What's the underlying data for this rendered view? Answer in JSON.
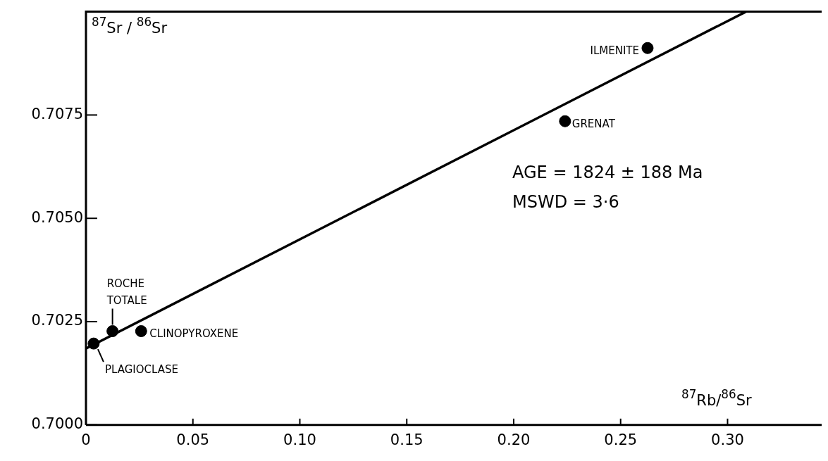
{
  "chart_data": {
    "type": "scatter",
    "xlabel": "$^{87}$Rb/$^{86}$Sr",
    "ylabel": "$^{87}$Sr / $^{86}$Sr",
    "xlim": [
      0,
      0.344
    ],
    "ylim": [
      0.7,
      0.71
    ],
    "xticks": [
      0,
      0.05,
      {
        "value": 0.1,
        "label": "0.10"
      },
      0.15,
      {
        "value": 0.2,
        "label": "0.20"
      },
      0.25,
      {
        "value": 0.3,
        "label": "0.30"
      }
    ],
    "yticks": [
      {
        "value": 0.7,
        "label": "0.7000"
      },
      0.7025,
      {
        "value": 0.705,
        "label": "0.7050"
      },
      0.7075
    ],
    "marker": "circle",
    "grid": false,
    "legend": false,
    "series": [
      {
        "color": "#000000",
        "x": [
          0.0036,
          0.0124,
          0.0258,
          0.224,
          0.2626
        ],
        "values": [
          0.70197,
          0.70227,
          0.70227,
          0.70735,
          0.70912
        ]
      },
      {
        "type": "line",
        "marker": "none",
        "color": "#000000",
        "x": [
          0,
          0.3086
        ],
        "values": [
          0.70185,
          0.71
        ]
      }
    ],
    "annotations": [
      {
        "text": "PLAGIOCLASE",
        "x": 0.0036,
        "y": 0.70197
      },
      {
        "text": "ROCHE TOTALE",
        "x": 0.0124,
        "y": 0.70227
      },
      {
        "text": "CLINOPYROXENE",
        "x": 0.0258,
        "y": 0.70227
      },
      {
        "text": "GRENAT",
        "x": 0.224,
        "y": 0.70735
      },
      {
        "text": "ILMENITE",
        "x": 0.2626,
        "y": 0.70912
      },
      "AGE = 1824 ± 188 Ma",
      "MSWD = 3·6"
    ]
  }
}
